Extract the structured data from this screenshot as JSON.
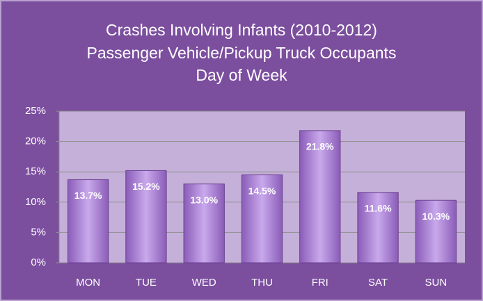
{
  "chart_data": {
    "type": "bar",
    "title": [
      "Crashes Involving Infants (2010-2012)",
      "Passenger Vehicle/Pickup Truck Occupants",
      "Day of Week"
    ],
    "categories": [
      "MON",
      "TUE",
      "WED",
      "THU",
      "FRI",
      "SAT",
      "SUN"
    ],
    "values": [
      13.7,
      15.2,
      13.0,
      14.5,
      21.8,
      11.6,
      10.3
    ],
    "value_labels": [
      "13.7%",
      "15.2%",
      "13.0%",
      "14.5%",
      "21.8%",
      "11.6%",
      "10.3%"
    ],
    "color": "#a97fd6",
    "ylim": [
      0,
      25
    ],
    "yticks": [
      {
        "value": 0,
        "label": "0%"
      },
      {
        "value": 5,
        "label": "5%"
      },
      {
        "value": 10,
        "label": "10%"
      },
      {
        "value": 15,
        "label": "15%"
      },
      {
        "value": 20,
        "label": "20%"
      },
      {
        "value": 25,
        "label": "25%"
      }
    ],
    "grid": true
  }
}
